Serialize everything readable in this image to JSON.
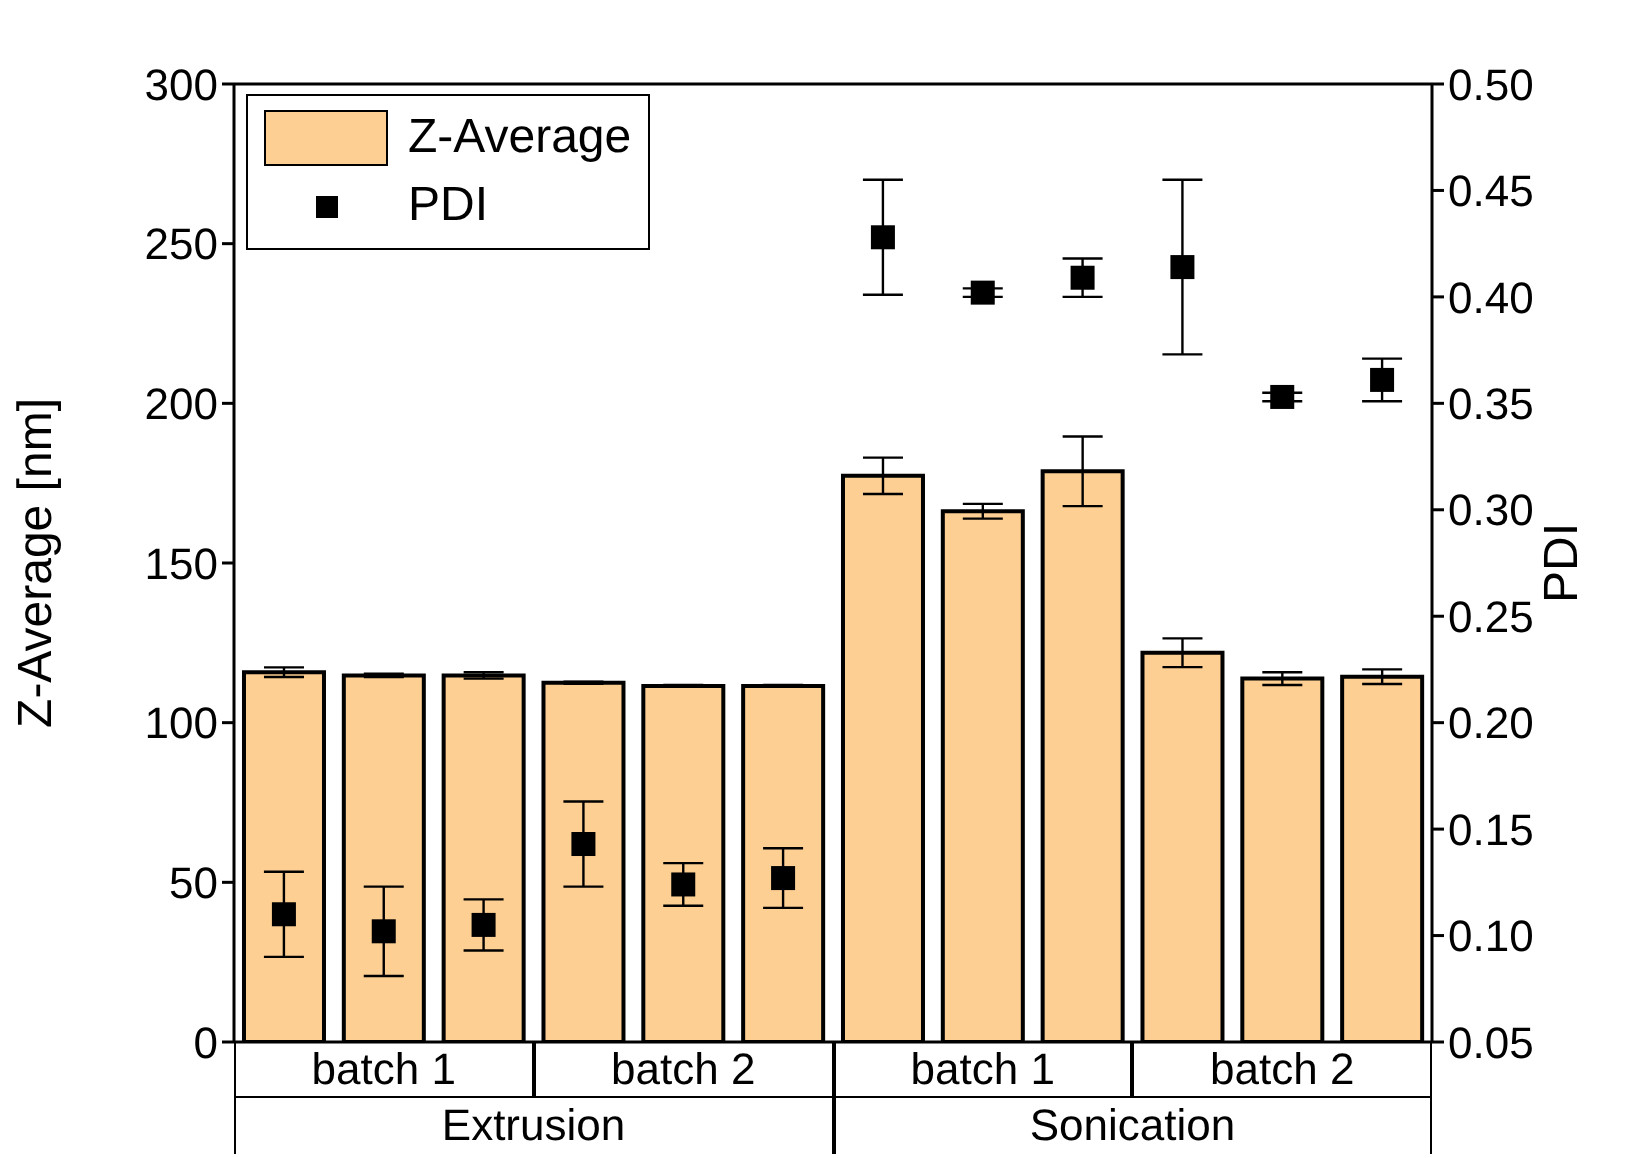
{
  "chart_data": {
    "type": "bar",
    "categories": [
      null,
      null,
      null,
      null,
      null,
      null,
      null,
      null,
      null,
      null,
      null,
      null
    ],
    "ylabel": "Z-Average [nm]",
    "y2label": "PDI",
    "series": [
      {
        "name": "Z-Average",
        "color": "#fecf92",
        "values": [
          115.8,
          114.8,
          114.8,
          112.5,
          111.5,
          111.5,
          177.3,
          166.2,
          178.7,
          121.9,
          113.8,
          114.4
        ],
        "errors": [
          1.5,
          0.5,
          1,
          0.3,
          0.3,
          0.3,
          5.7,
          2.3,
          10.9,
          4.5,
          2,
          2.3
        ]
      },
      {
        "name": "PDI",
        "type": "scatter",
        "axis": "y2",
        "color": "#000000",
        "marker": "square",
        "values": [
          0.11,
          0.102,
          0.105,
          0.143,
          0.124,
          0.127,
          0.428,
          0.402,
          0.409,
          0.414,
          0.353,
          0.361
        ],
        "errors": [
          0.02,
          0.021,
          0.012,
          0.02,
          0.01,
          0.014,
          0.027,
          0.002,
          0.009,
          0.041,
          0.002,
          0.01
        ]
      }
    ],
    "ylim": [
      0,
      300
    ],
    "yticks": [
      0,
      50,
      100,
      150,
      200,
      250,
      300
    ],
    "y2lim": [
      0.05,
      0.5
    ],
    "y2ticks": [
      {
        "value": 0.05,
        "label": "0.05"
      },
      {
        "value": 0.1,
        "label": "0.10"
      },
      {
        "value": 0.15,
        "label": "0.15"
      },
      {
        "value": 0.2,
        "label": "0.20"
      },
      {
        "value": 0.25,
        "label": "0.25"
      },
      {
        "value": 0.3,
        "label": "0.30"
      },
      {
        "value": 0.35,
        "label": "0.35"
      },
      {
        "value": 0.4,
        "label": "0.40"
      },
      {
        "value": 0.45,
        "label": "0.45"
      },
      {
        "value": 0.5,
        "label": "0.50"
      }
    ],
    "annotations": [
      "batch 1",
      "batch 2",
      "batch 1",
      "batch 2",
      "Extrusion",
      "Sonication"
    ],
    "legend": "top left"
  }
}
